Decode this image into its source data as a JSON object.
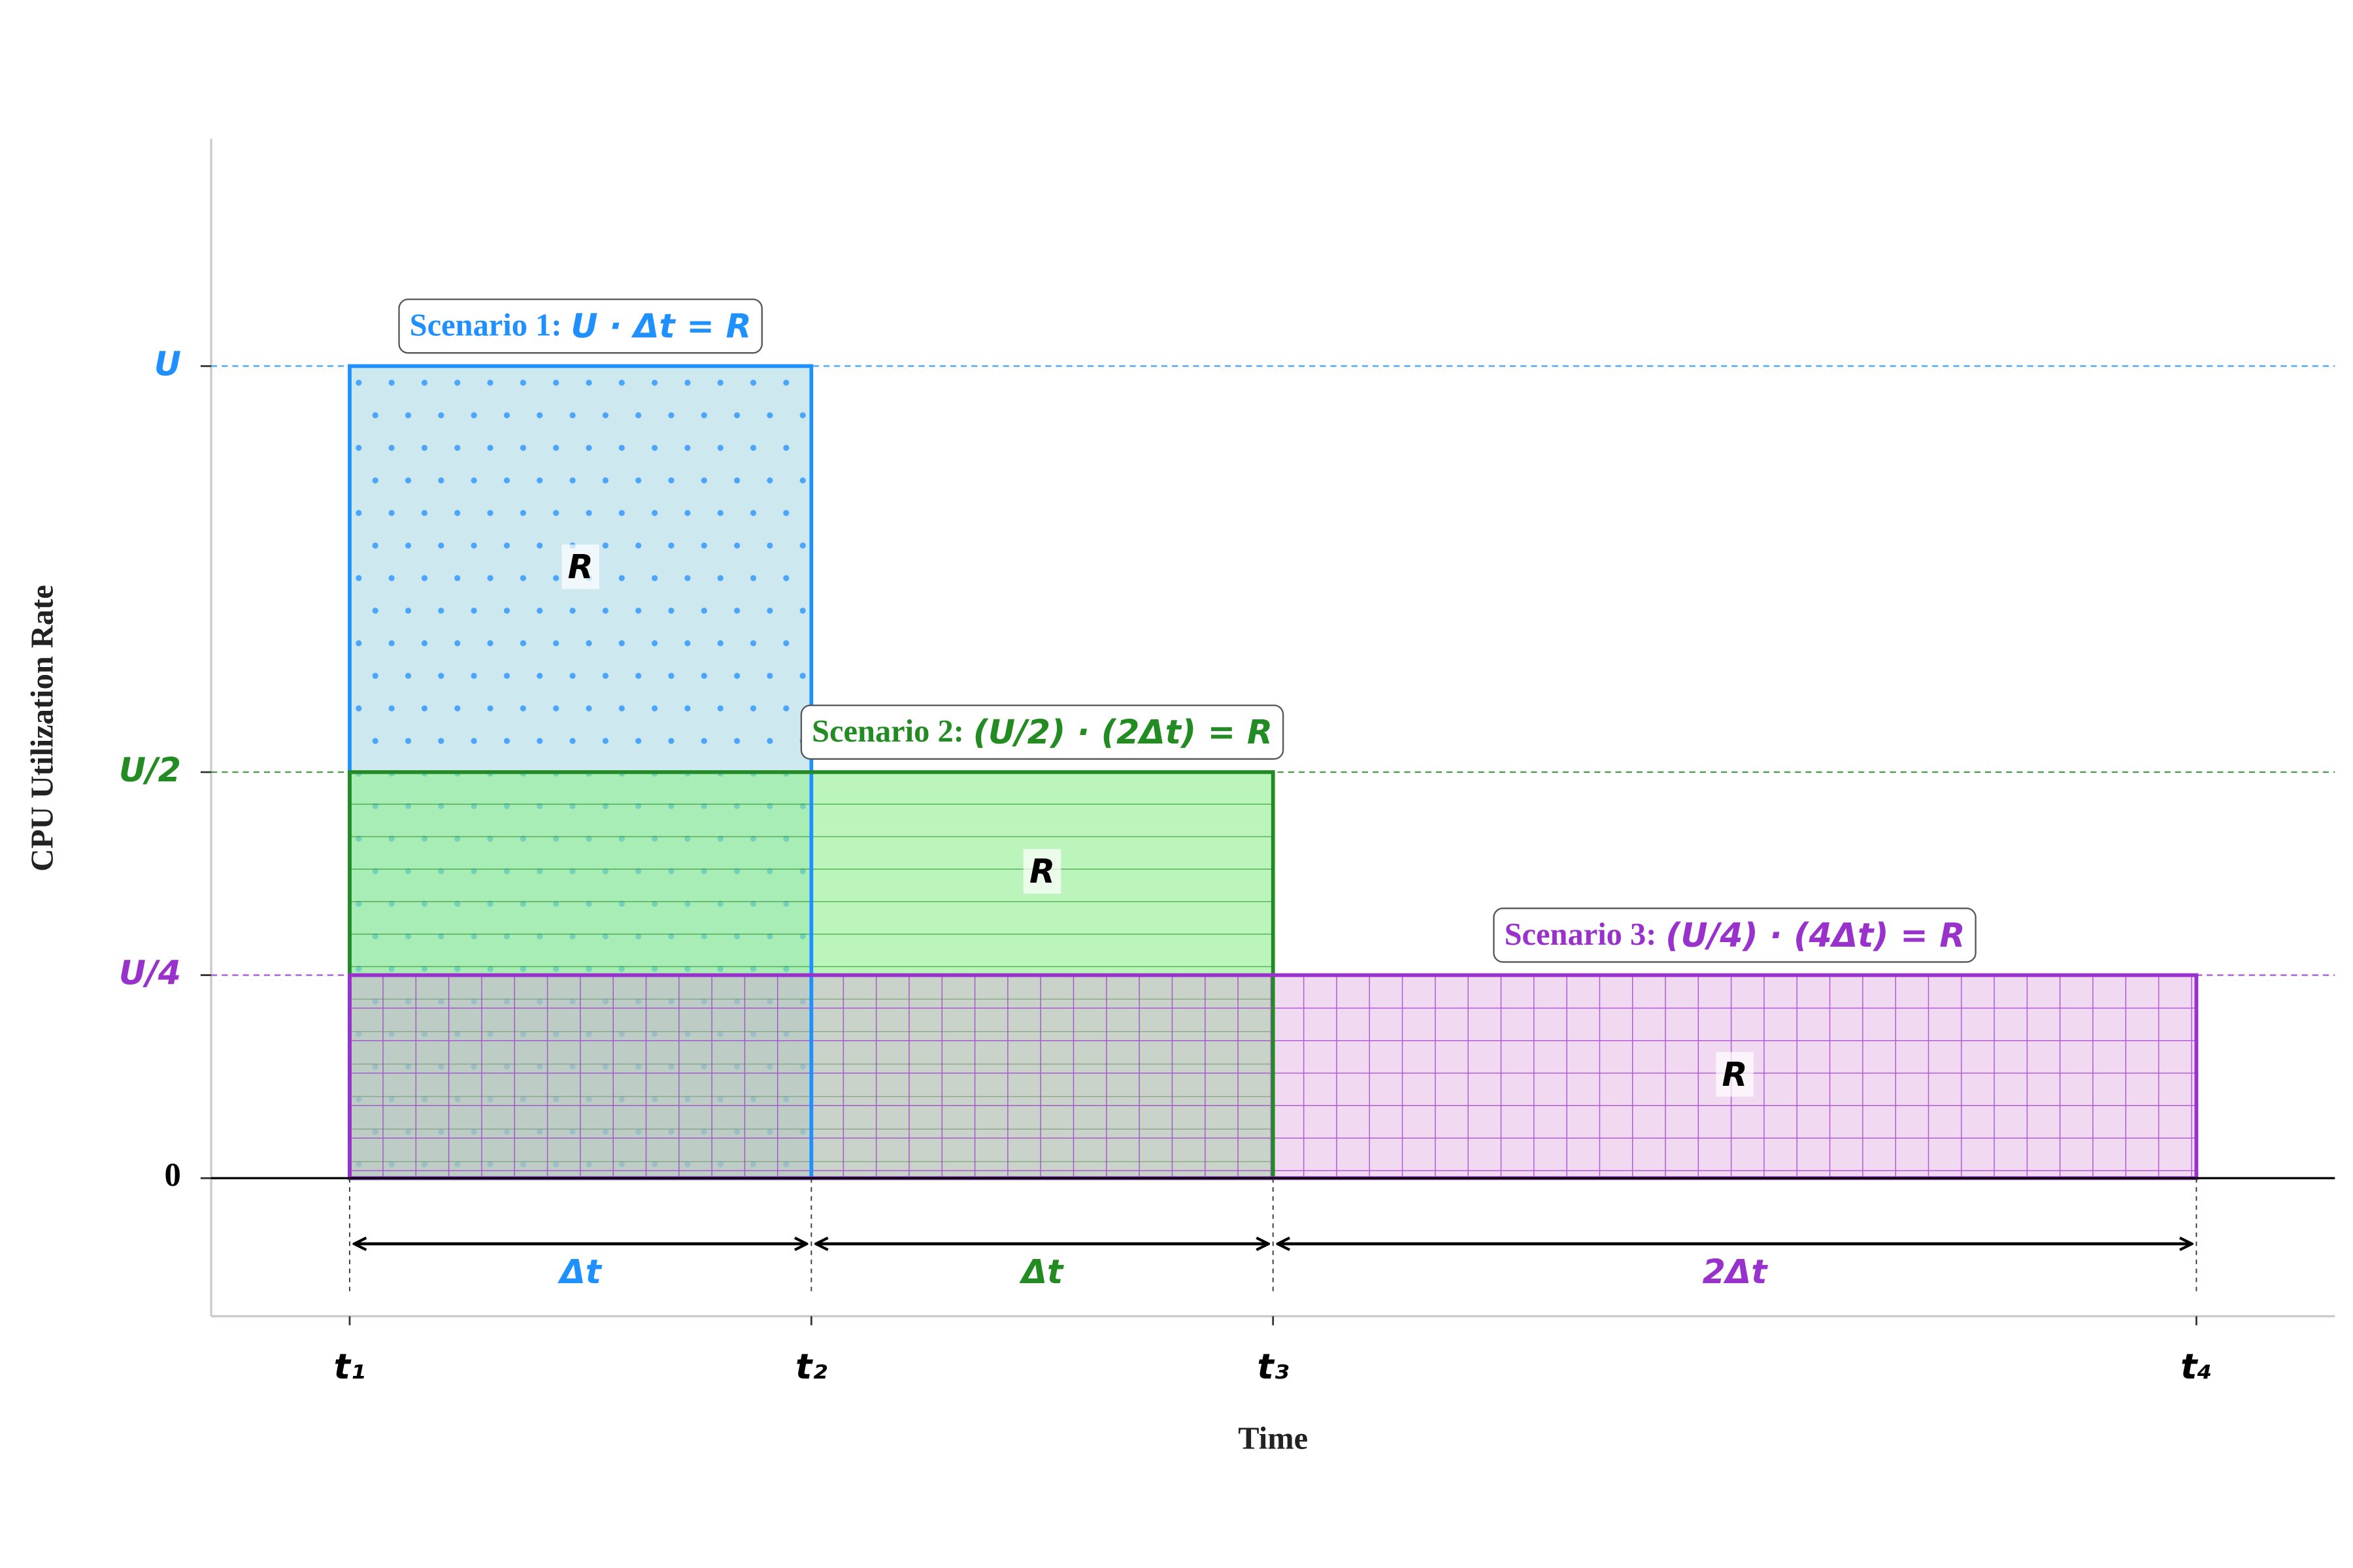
{
  "chart_data": {
    "type": "block",
    "x_label": "Time",
    "y_label": "CPU Utilization Rate",
    "xlim": [
      -0.3,
      4.3
    ],
    "ylim": [
      -0.17,
      1.28
    ],
    "xticks": [
      {
        "value": 0,
        "label": "t₁"
      },
      {
        "value": 1,
        "label": "t₂"
      },
      {
        "value": 2,
        "label": "t₃"
      },
      {
        "value": 4,
        "label": "t₄"
      }
    ],
    "yticks": [
      0,
      {
        "value": 0.25,
        "label": "U/4"
      },
      {
        "value": 0.5,
        "label": "U/2"
      },
      {
        "value": 1,
        "label": "U"
      }
    ],
    "series": [
      {
        "name": "Scenario 1:",
        "formula": "U · Δt = R",
        "color": "#1e90ff",
        "fill": "#add8e6",
        "opacity": 0.6,
        "hatch": "dots",
        "start": 0,
        "end": 1,
        "value": 1,
        "area_label": "R"
      },
      {
        "name": "Scenario 2:",
        "formula": "(U/2) · (2Δt) = R",
        "color": "#228b22",
        "fill": "#90ee90",
        "opacity": 0.6,
        "hatch": "horizontal",
        "start": 0,
        "end": 2,
        "value": 0.5,
        "area_label": "R"
      },
      {
        "name": "Scenario 3:",
        "formula": "(U/4) · (4Δt) = R",
        "color": "#9932cc",
        "fill": "#dda0dd",
        "opacity": 0.4,
        "hatch": "grid",
        "start": 0,
        "end": 4,
        "value": 0.25,
        "area_label": "R"
      }
    ],
    "intervals": [
      {
        "start": 0,
        "end": 1,
        "label": "Δt",
        "color": "#1e90ff"
      },
      {
        "start": 1,
        "end": 2,
        "label": "Δt",
        "color": "#228b22"
      },
      {
        "start": 2,
        "end": 4,
        "label": "2Δt",
        "color": "#9932cc"
      }
    ]
  }
}
